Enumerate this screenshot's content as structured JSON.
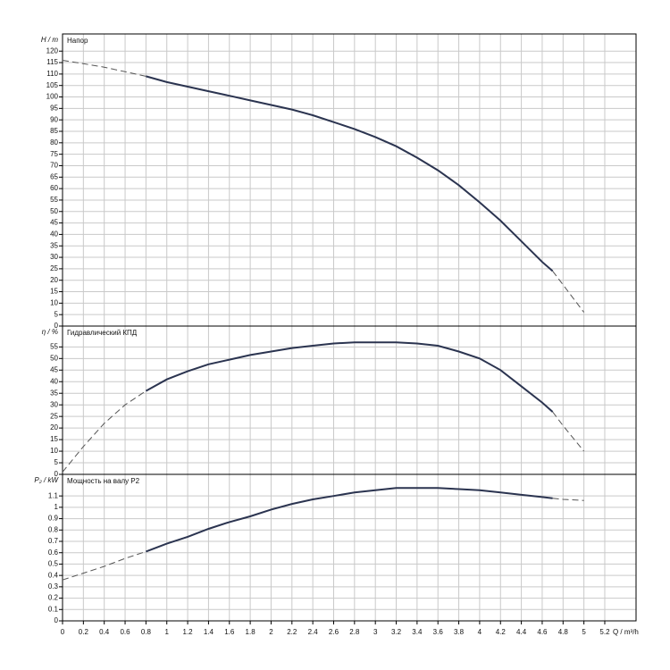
{
  "chart_data": [
    {
      "type": "line",
      "title": "Напор",
      "ylabel": "H / m",
      "x": [
        0,
        0.2,
        0.4,
        0.6,
        0.8,
        1,
        1.2,
        1.4,
        1.6,
        1.8,
        2,
        2.2,
        2.4,
        2.6,
        2.8,
        3,
        3.2,
        3.4,
        3.6,
        3.8,
        4,
        4.2,
        4.4,
        4.6,
        4.7,
        4.8,
        5
      ],
      "series": [
        {
          "color": "#555555",
          "dashed": true,
          "values": [
            116,
            114.5,
            113,
            111,
            109,
            null,
            null,
            null,
            null,
            null,
            null,
            null,
            null,
            null,
            null,
            null,
            null,
            null,
            null,
            null,
            null,
            null,
            null,
            null,
            24,
            18,
            6
          ]
        },
        {
          "color": "#2b3450",
          "dashed": false,
          "values": [
            null,
            null,
            null,
            null,
            109,
            106.5,
            104.5,
            102.5,
            100.5,
            98.5,
            96.5,
            94.5,
            92,
            89,
            86,
            82.5,
            78.5,
            73.5,
            68,
            61.5,
            54,
            46,
            37,
            28,
            24,
            null,
            null
          ]
        }
      ],
      "xlim": [
        0,
        5.5
      ],
      "xticks": [
        0,
        0.2,
        0.4,
        0.6,
        0.8,
        1,
        1.2,
        1.4,
        1.6,
        1.8,
        2,
        2.2,
        2.4,
        2.6,
        2.8,
        3,
        3.2,
        3.4,
        3.6,
        3.8,
        4,
        4.2,
        4.4,
        4.6,
        4.8,
        5,
        5.2
      ],
      "ylim": [
        0,
        127.5
      ],
      "yticks": [
        0,
        5,
        10,
        15,
        20,
        25,
        30,
        35,
        40,
        45,
        50,
        55,
        60,
        65,
        70,
        75,
        80,
        85,
        90,
        95,
        100,
        105,
        110,
        115,
        120
      ],
      "grid": true
    },
    {
      "type": "line",
      "title": "Гидравлический КПД",
      "ylabel": "η / %",
      "x": [
        0,
        0.2,
        0.4,
        0.6,
        0.8,
        1,
        1.2,
        1.4,
        1.6,
        1.8,
        2,
        2.2,
        2.4,
        2.6,
        2.8,
        3,
        3.2,
        3.4,
        3.6,
        3.8,
        4,
        4.2,
        4.4,
        4.6,
        4.7,
        4.8,
        5
      ],
      "series": [
        {
          "color": "#555555",
          "dashed": true,
          "values": [
            1,
            12,
            22,
            30,
            36,
            null,
            null,
            null,
            null,
            null,
            null,
            null,
            null,
            null,
            null,
            null,
            null,
            null,
            null,
            null,
            null,
            null,
            null,
            null,
            27,
            21,
            10
          ]
        },
        {
          "color": "#2b3450",
          "dashed": false,
          "values": [
            null,
            null,
            null,
            null,
            36,
            41,
            44.5,
            47.5,
            49.5,
            51.5,
            53,
            54.5,
            55.5,
            56.5,
            57,
            57,
            57,
            56.5,
            55.5,
            53,
            50,
            45,
            38,
            31,
            27,
            null,
            null
          ]
        }
      ],
      "xlim": [
        0,
        5.5
      ],
      "xticks": [
        0,
        0.2,
        0.4,
        0.6,
        0.8,
        1,
        1.2,
        1.4,
        1.6,
        1.8,
        2,
        2.2,
        2.4,
        2.6,
        2.8,
        3,
        3.2,
        3.4,
        3.6,
        3.8,
        4,
        4.2,
        4.4,
        4.6,
        4.8,
        5,
        5.2
      ],
      "ylim": [
        0,
        64
      ],
      "yticks": [
        0,
        5,
        10,
        15,
        20,
        25,
        30,
        35,
        40,
        45,
        50,
        55
      ],
      "grid": true
    },
    {
      "type": "line",
      "title": "Мощность на валу P2",
      "ylabel": "P₂ / kW",
      "xlabel": "Q / m³/h",
      "x": [
        0,
        0.2,
        0.4,
        0.6,
        0.8,
        1,
        1.2,
        1.4,
        1.6,
        1.8,
        2,
        2.2,
        2.4,
        2.6,
        2.8,
        3,
        3.2,
        3.4,
        3.6,
        3.8,
        4,
        4.2,
        4.4,
        4.6,
        4.7,
        4.8,
        5
      ],
      "series": [
        {
          "color": "#555555",
          "dashed": true,
          "values": [
            0.36,
            0.42,
            0.48,
            0.55,
            0.61,
            null,
            null,
            null,
            null,
            null,
            null,
            null,
            null,
            null,
            null,
            null,
            null,
            null,
            null,
            null,
            null,
            null,
            null,
            null,
            1.08,
            1.07,
            1.06
          ]
        },
        {
          "color": "#2b3450",
          "dashed": false,
          "values": [
            null,
            null,
            null,
            null,
            0.61,
            0.68,
            0.74,
            0.81,
            0.87,
            0.92,
            0.98,
            1.03,
            1.07,
            1.1,
            1.13,
            1.15,
            1.17,
            1.17,
            1.17,
            1.16,
            1.15,
            1.13,
            1.11,
            1.09,
            1.08,
            null,
            null
          ]
        }
      ],
      "xlim": [
        0,
        5.5
      ],
      "xticks": [
        0,
        0.2,
        0.4,
        0.6,
        0.8,
        1,
        1.2,
        1.4,
        1.6,
        1.8,
        2,
        2.2,
        2.4,
        2.6,
        2.8,
        3,
        3.2,
        3.4,
        3.6,
        3.8,
        4,
        4.2,
        4.4,
        4.6,
        4.8,
        5,
        5.2
      ],
      "ylim": [
        0,
        1.29
      ],
      "yticks": [
        0,
        0.1,
        0.2,
        0.3,
        0.4,
        0.5,
        0.6,
        0.7,
        0.8,
        0.9,
        1,
        1.1
      ],
      "grid": true
    }
  ]
}
